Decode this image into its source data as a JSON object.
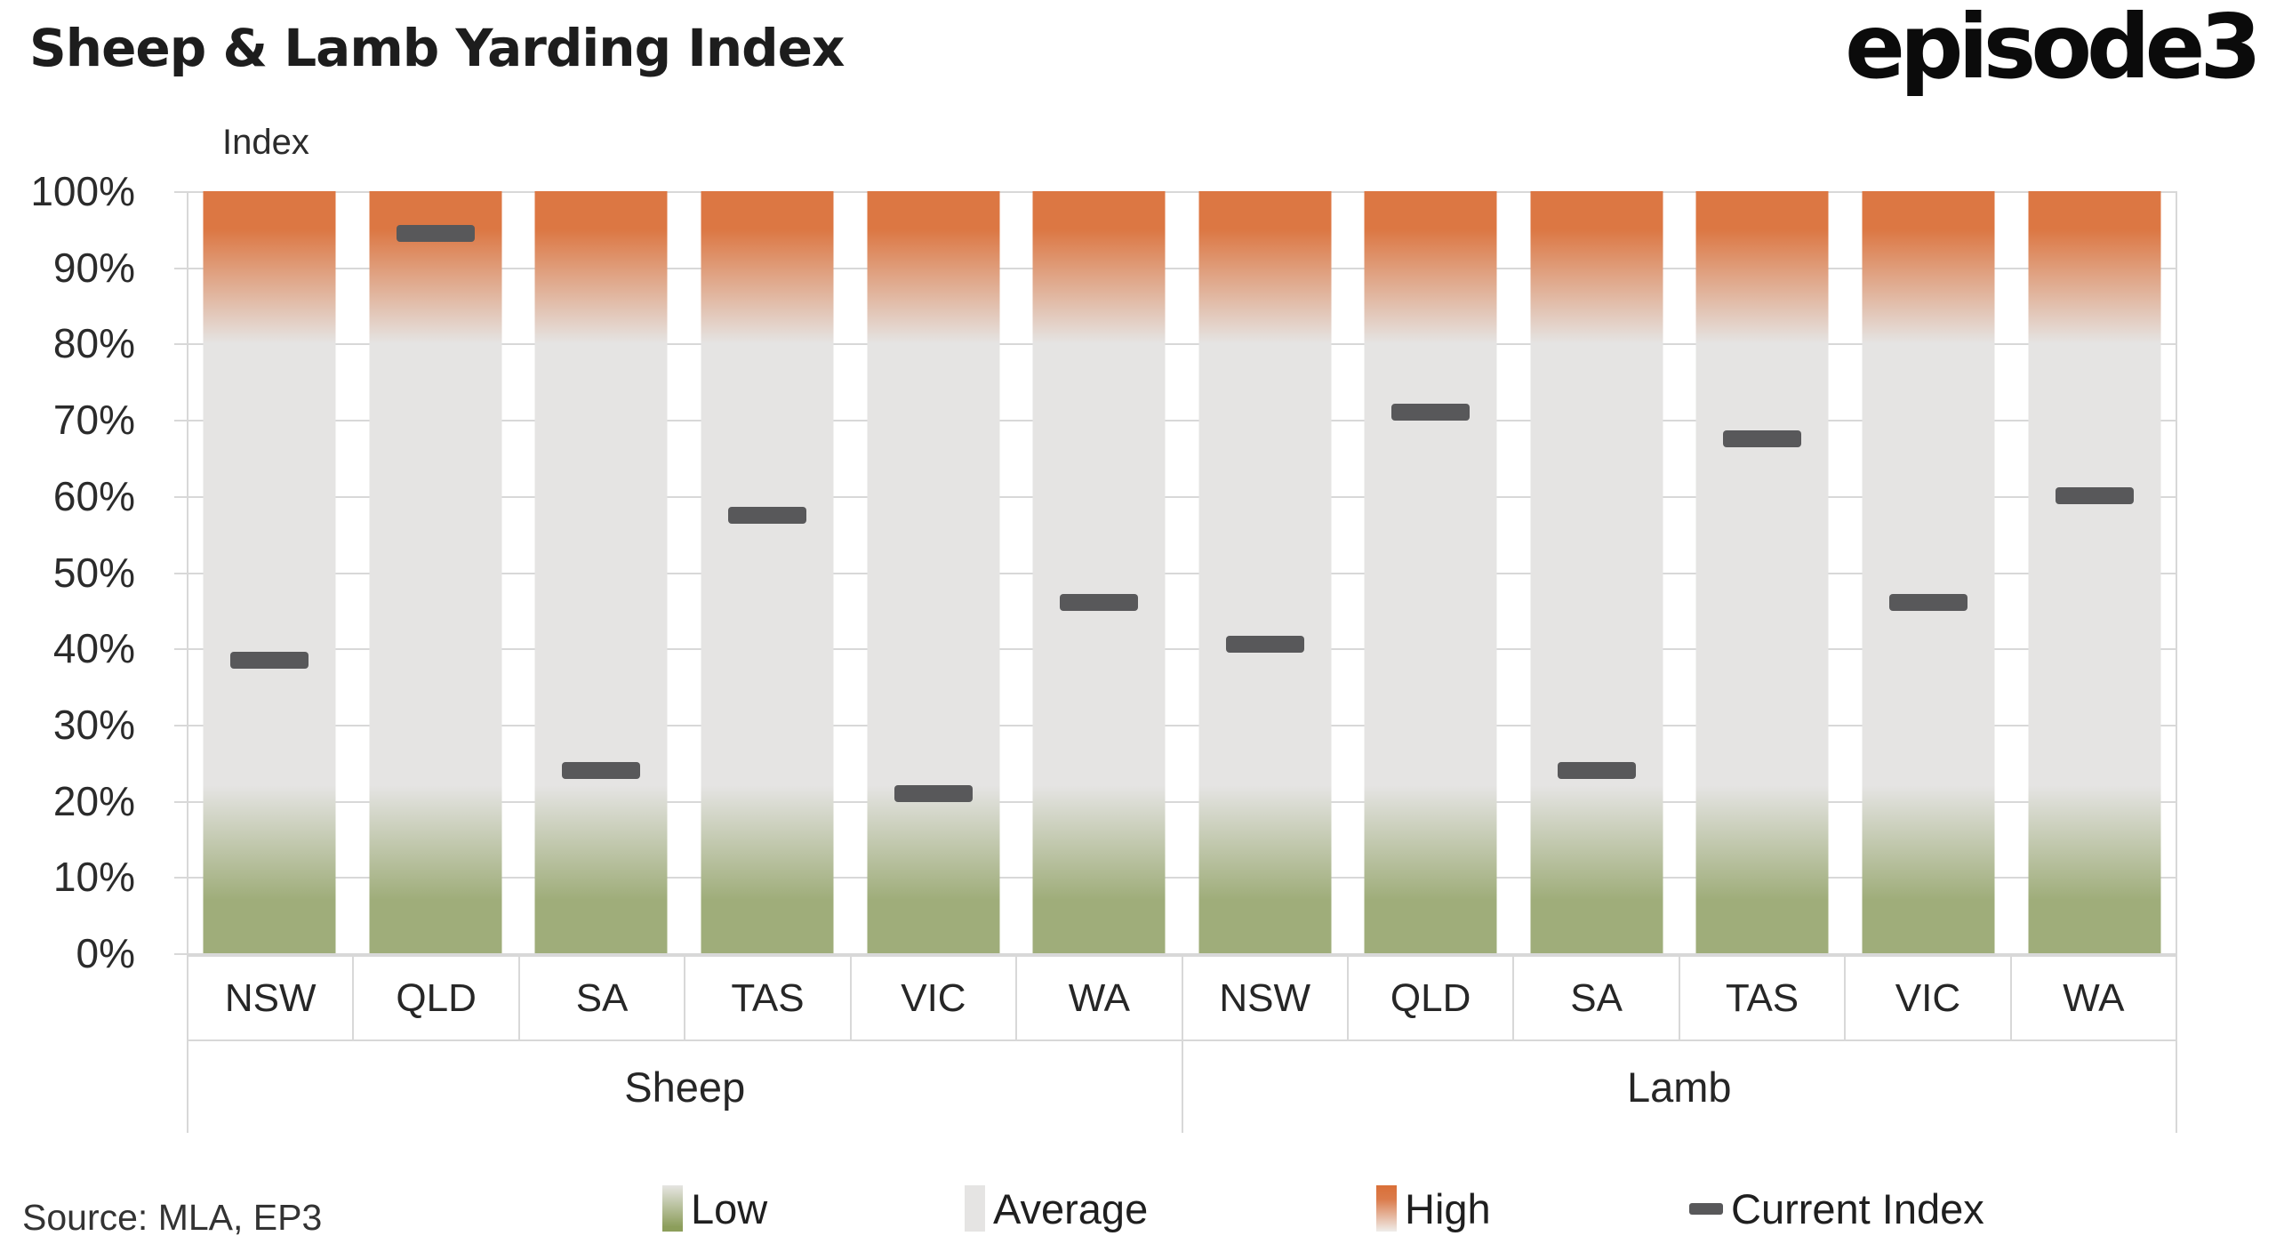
{
  "header": {
    "title": "Sheep & Lamb Yarding Index",
    "logo": "episode3"
  },
  "source_note": "Source: MLA, EP3",
  "legend": {
    "low_label": "Low",
    "average_label": "Average",
    "high_label": "High",
    "current_label": "Current Index"
  },
  "colors": {
    "high_orange": "#DC7743",
    "average_gray": "#E5E4E3",
    "low_green": "#9FAD7A",
    "marker_gray": "#58585A",
    "gridline_gray": "#D8D8D8"
  },
  "chart_data": {
    "type": "bar",
    "title": "Sheep & Lamb Yarding Index",
    "ylabel": "Index",
    "ylim": [
      0,
      100
    ],
    "y_ticks": [
      "100%",
      "90%",
      "80%",
      "70%",
      "60%",
      "50%",
      "40%",
      "30%",
      "20%",
      "10%",
      "0%"
    ],
    "grid": true,
    "legend_position": "bottom",
    "groups": [
      "Sheep",
      "Lamb"
    ],
    "categories": [
      "NSW",
      "QLD",
      "SA",
      "TAS",
      "VIC",
      "WA"
    ],
    "zones": [
      {
        "name": "Low",
        "range_pct": [
          0,
          20
        ],
        "color": "#9FAD7A"
      },
      {
        "name": "Average",
        "range_pct": [
          20,
          80
        ],
        "color": "#E5E4E3"
      },
      {
        "name": "High",
        "range_pct": [
          80,
          100
        ],
        "color": "#DC7743"
      }
    ],
    "series": [
      {
        "name": "Current Index",
        "group": "Sheep",
        "values": [
          38.5,
          94.5,
          24,
          57.5,
          21,
          46
        ]
      },
      {
        "name": "Current Index",
        "group": "Lamb",
        "values": [
          40.5,
          71,
          24,
          67.5,
          46,
          60
        ]
      }
    ]
  }
}
